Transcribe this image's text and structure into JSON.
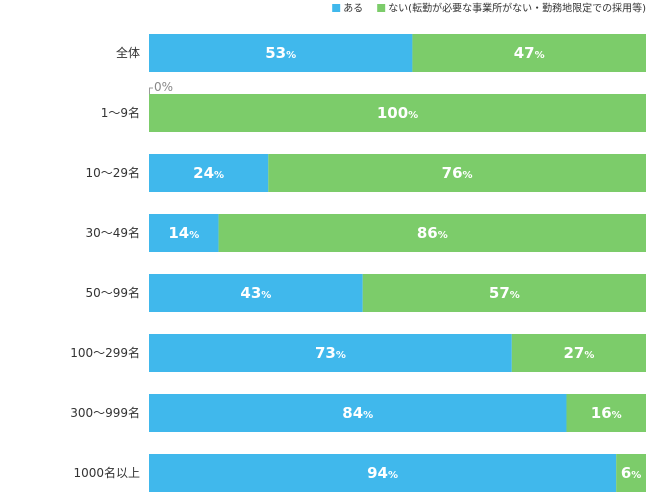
{
  "chart_data": {
    "type": "bar",
    "orientation": "horizontal",
    "stacked": true,
    "categories": [
      "全体",
      "1〜9名",
      "10〜29名",
      "30〜49名",
      "50〜99名",
      "100〜299名",
      "300〜999名",
      "1000名以上"
    ],
    "series": [
      {
        "name": "ある",
        "color": "#40b8ec",
        "values": [
          53,
          0,
          24,
          14,
          43,
          73,
          84,
          94
        ]
      },
      {
        "name": "ない(転勤が必要な事業所がない・勤務地限定での採用等)",
        "color": "#7ccc6a",
        "values": [
          47,
          100,
          76,
          86,
          57,
          27,
          16,
          6
        ]
      }
    ],
    "value_suffix": "%",
    "xlim": [
      0,
      100
    ],
    "legend_position": "top-right",
    "grid": false
  }
}
